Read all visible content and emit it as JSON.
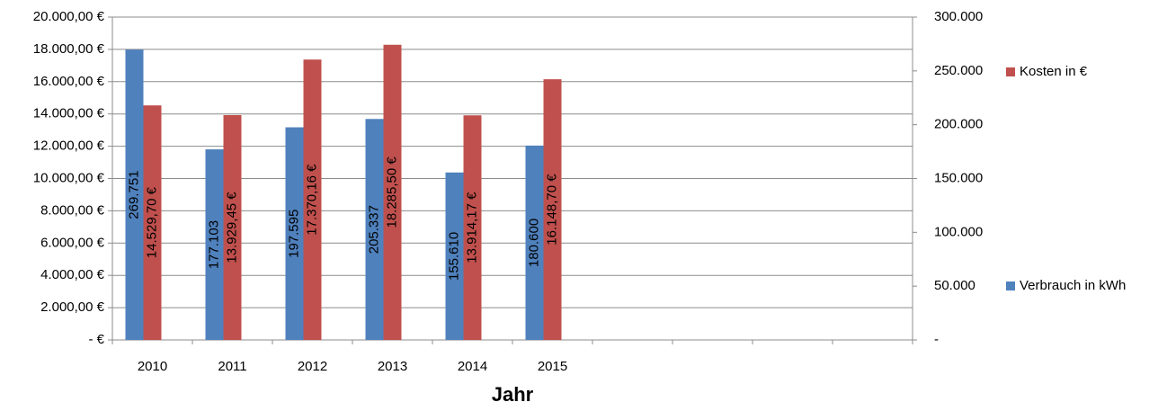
{
  "chart_data": {
    "type": "bar",
    "x_label": "Jahr",
    "categories": [
      "2010",
      "2011",
      "2012",
      "2013",
      "2014",
      "2015",
      null,
      null,
      null,
      null
    ],
    "series": [
      {
        "name": "Verbrauch in kWh",
        "color": "#4f81bd",
        "axis": "y2",
        "values": [
          269751,
          177103,
          197595,
          205337,
          155610,
          180600,
          null,
          null,
          null,
          null
        ],
        "value_labels": [
          "269.751",
          "177.103",
          "197.595",
          "205.337",
          "155.610",
          "180.600",
          null,
          null,
          null,
          null
        ]
      },
      {
        "name": "Kosten in €",
        "color": "#c0504d",
        "axis": "y",
        "values": [
          14529.7,
          13929.45,
          17370.16,
          18285.5,
          13914.17,
          16148.7,
          null,
          null,
          null,
          null
        ],
        "value_labels": [
          "14.529,70 €",
          "13.929,45 €",
          "17.370,16 €",
          "18.285,50 €",
          "13.914,17 €",
          "16.148,70 €",
          null,
          null,
          null,
          null
        ]
      }
    ],
    "ylim": [
      0,
      20000
    ],
    "yticks": [
      {
        "value": 0,
        "label": "-   €"
      },
      {
        "value": 2000,
        "label": "2.000,00 €"
      },
      {
        "value": 4000,
        "label": "4.000,00 €"
      },
      {
        "value": 6000,
        "label": "6.000,00 €"
      },
      {
        "value": 8000,
        "label": "8.000,00 €"
      },
      {
        "value": 10000,
        "label": "10.000,00 €"
      },
      {
        "value": 12000,
        "label": "12.000,00 €"
      },
      {
        "value": 14000,
        "label": "14.000,00 €"
      },
      {
        "value": 16000,
        "label": "16.000,00 €"
      },
      {
        "value": 18000,
        "label": "18.000,00 €"
      },
      {
        "value": 20000,
        "label": "20.000,00 €"
      }
    ],
    "y2lim": [
      0,
      300000
    ],
    "y2ticks": [
      {
        "value": 0,
        "label": "-"
      },
      {
        "value": 50000,
        "label": "50.000"
      },
      {
        "value": 100000,
        "label": "100.000"
      },
      {
        "value": 150000,
        "label": "150.000"
      },
      {
        "value": 200000,
        "label": "200.000"
      },
      {
        "value": 250000,
        "label": "250.000"
      },
      {
        "value": 300000,
        "label": "300.000"
      }
    ],
    "grid": true,
    "legend": "right"
  }
}
